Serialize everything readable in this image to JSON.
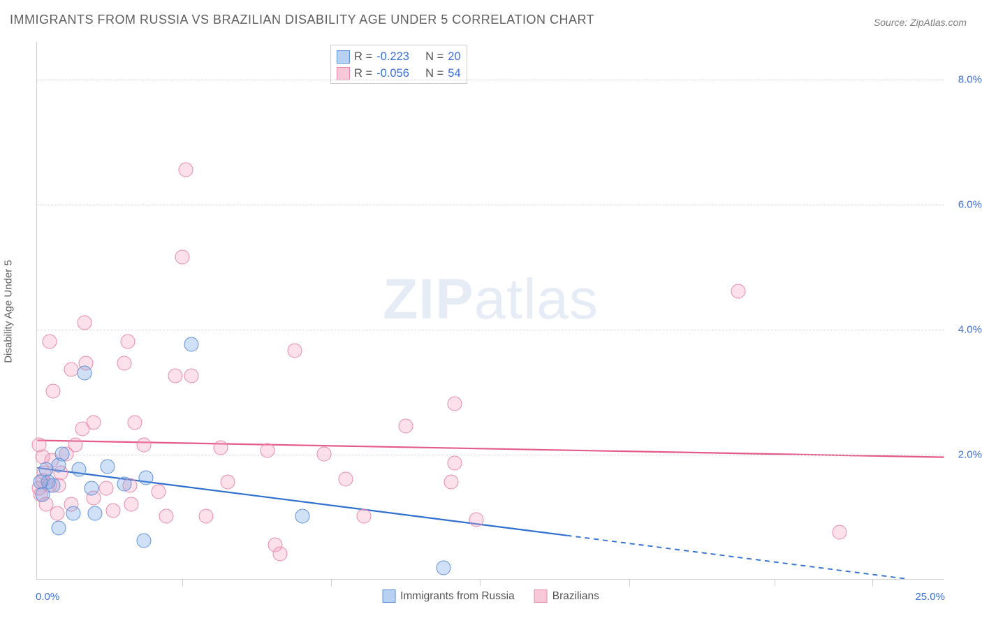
{
  "title": "IMMIGRANTS FROM RUSSIA VS BRAZILIAN DISABILITY AGE UNDER 5 CORRELATION CHART",
  "source_label": "Source:",
  "source_value": "ZipAtlas.com",
  "y_axis_title": "Disability Age Under 5",
  "watermark_bold": "ZIP",
  "watermark_light": "atlas",
  "chart": {
    "type": "scatter",
    "background_color": "#ffffff",
    "grid_color": "#d8d8d8",
    "axis_color": "#d0d0d0",
    "tick_label_color": "#3b6fd8",
    "axis_title_color": "#5f5f5f",
    "xlim": [
      0,
      25
    ],
    "ylim": [
      0,
      8.6
    ],
    "x_ticks_major": [
      0.0,
      25.0
    ],
    "x_ticks_minor": [
      4.0,
      8.1,
      12.2,
      16.3,
      20.3,
      23.0
    ],
    "x_tick_labels": {
      "0": "0.0%",
      "25": "25.0%"
    },
    "y_ticks": [
      2.0,
      4.0,
      6.0,
      8.0
    ],
    "y_tick_labels": {
      "2": "2.0%",
      "4": "4.0%",
      "6": "6.0%",
      "8": "8.0%"
    },
    "marker_radius": 10.5,
    "marker_stroke_width": 1.4,
    "trend_stroke_width": 2.2,
    "series": [
      {
        "key": "russia",
        "label": "Immigrants from Russia",
        "fill": "rgba(120,165,230,0.35)",
        "stroke": "#5e92d8",
        "swatch_fill": "#b8d1f3",
        "swatch_stroke": "#5e92d8",
        "R_label": "R =",
        "R_value": "-0.223",
        "N_label": "N =",
        "N_value": "20",
        "trend": {
          "color": "#2f6fd0",
          "solid_to_x": 14.6,
          "y_at_0": 1.78,
          "y_at_end": 0.0,
          "end_x": 24.0
        },
        "points": [
          [
            1.3,
            3.3
          ],
          [
            4.25,
            3.75
          ],
          [
            1.95,
            1.8
          ],
          [
            0.7,
            2.0
          ],
          [
            0.6,
            1.82
          ],
          [
            1.5,
            1.45
          ],
          [
            3.0,
            1.62
          ],
          [
            2.4,
            1.52
          ],
          [
            1.0,
            1.05
          ],
          [
            1.6,
            1.05
          ],
          [
            2.95,
            0.62
          ],
          [
            7.3,
            1.0
          ],
          [
            0.6,
            0.82
          ],
          [
            11.2,
            0.18
          ],
          [
            0.25,
            1.75
          ],
          [
            0.3,
            1.55
          ],
          [
            0.45,
            1.5
          ],
          [
            0.1,
            1.55
          ],
          [
            0.15,
            1.35
          ],
          [
            1.15,
            1.75
          ]
        ]
      },
      {
        "key": "brazil",
        "label": "Brazilians",
        "fill": "rgba(245,160,190,0.32)",
        "stroke": "#e88aa8",
        "swatch_fill": "#f7c9d8",
        "swatch_stroke": "#e88aa8",
        "R_label": "R =",
        "R_value": "-0.056",
        "N_label": "N =",
        "N_value": "54",
        "trend": {
          "color": "#e35b86",
          "solid_to_x": 25.0,
          "y_at_0": 2.22,
          "y_at_end": 1.95,
          "end_x": 25.0
        },
        "points": [
          [
            4.1,
            6.55
          ],
          [
            4.0,
            5.15
          ],
          [
            1.3,
            4.1
          ],
          [
            0.35,
            3.8
          ],
          [
            2.5,
            3.8
          ],
          [
            7.1,
            3.65
          ],
          [
            19.3,
            4.6
          ],
          [
            1.35,
            3.45
          ],
          [
            2.4,
            3.45
          ],
          [
            0.95,
            3.35
          ],
          [
            3.8,
            3.25
          ],
          [
            0.45,
            3.0
          ],
          [
            4.25,
            3.25
          ],
          [
            11.5,
            2.8
          ],
          [
            10.15,
            2.45
          ],
          [
            0.05,
            2.15
          ],
          [
            2.7,
            2.5
          ],
          [
            1.55,
            2.5
          ],
          [
            1.25,
            2.4
          ],
          [
            2.95,
            2.15
          ],
          [
            5.05,
            2.1
          ],
          [
            7.9,
            2.0
          ],
          [
            6.35,
            2.05
          ],
          [
            0.15,
            1.95
          ],
          [
            1.05,
            2.15
          ],
          [
            0.8,
            2.0
          ],
          [
            0.4,
            1.9
          ],
          [
            0.65,
            1.7
          ],
          [
            0.15,
            1.58
          ],
          [
            0.05,
            1.45
          ],
          [
            0.1,
            1.35
          ],
          [
            0.35,
            1.5
          ],
          [
            0.6,
            1.5
          ],
          [
            0.95,
            1.2
          ],
          [
            1.9,
            1.45
          ],
          [
            1.55,
            1.3
          ],
          [
            2.1,
            1.1
          ],
          [
            2.55,
            1.5
          ],
          [
            2.6,
            1.2
          ],
          [
            3.35,
            1.4
          ],
          [
            3.55,
            1.0
          ],
          [
            4.65,
            1.0
          ],
          [
            5.25,
            1.55
          ],
          [
            8.5,
            1.6
          ],
          [
            11.5,
            1.85
          ],
          [
            11.4,
            1.55
          ],
          [
            9.0,
            1.0
          ],
          [
            12.1,
            0.95
          ],
          [
            6.55,
            0.55
          ],
          [
            6.7,
            0.4
          ],
          [
            22.1,
            0.75
          ],
          [
            0.55,
            1.05
          ],
          [
            0.25,
            1.2
          ],
          [
            0.2,
            1.7
          ]
        ]
      }
    ]
  }
}
